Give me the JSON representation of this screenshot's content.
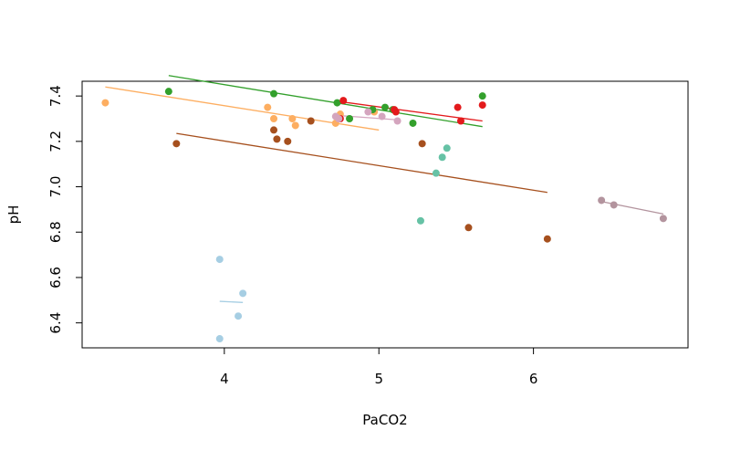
{
  "chart_data": {
    "type": "scatter",
    "title": "",
    "xlabel": "PaCO2",
    "ylabel": "pH",
    "xlim": [
      3.08,
      7.0
    ],
    "ylim": [
      6.29,
      7.465
    ],
    "x_ticks": [
      4,
      5,
      6
    ],
    "y_ticks": [
      6.4,
      6.6,
      6.8,
      7.0,
      7.2,
      7.4
    ],
    "x_tick_labels": [
      "4",
      "5",
      "6"
    ],
    "y_tick_labels": [
      "6.4",
      "6.6",
      "6.8",
      "7.0",
      "7.2",
      "7.4"
    ],
    "grid": false,
    "legend": "none",
    "series": [
      {
        "name": "light blue",
        "color": "#a6cee3",
        "points": [
          [
            3.97,
            6.68
          ],
          [
            4.12,
            6.53
          ],
          [
            4.09,
            6.43
          ],
          [
            3.97,
            6.33
          ]
        ],
        "fit": [
          [
            3.97,
            6.495
          ],
          [
            4.12,
            6.49
          ]
        ]
      },
      {
        "name": "orange",
        "color": "#fdae61",
        "points": [
          [
            3.23,
            7.37
          ],
          [
            4.28,
            7.35
          ],
          [
            4.32,
            7.3
          ],
          [
            4.44,
            7.3
          ],
          [
            4.46,
            7.27
          ],
          [
            4.72,
            7.28
          ],
          [
            4.75,
            7.32
          ],
          [
            4.97,
            7.33
          ]
        ],
        "fit": [
          [
            3.23,
            7.44
          ],
          [
            5.0,
            7.25
          ]
        ]
      },
      {
        "name": "dark green",
        "color": "#33a02c",
        "points": [
          [
            3.64,
            7.42
          ],
          [
            4.32,
            7.41
          ],
          [
            4.73,
            7.37
          ],
          [
            4.81,
            7.3
          ],
          [
            4.96,
            7.34
          ],
          [
            5.04,
            7.35
          ],
          [
            5.09,
            7.34
          ],
          [
            5.22,
            7.28
          ],
          [
            5.67,
            7.4
          ]
        ],
        "fit": [
          [
            3.64,
            7.49
          ],
          [
            5.67,
            7.265
          ]
        ]
      },
      {
        "name": "brown",
        "color": "#a6501e",
        "points": [
          [
            3.69,
            7.19
          ],
          [
            4.32,
            7.25
          ],
          [
            4.34,
            7.21
          ],
          [
            4.41,
            7.2
          ],
          [
            4.56,
            7.29
          ],
          [
            5.28,
            7.19
          ],
          [
            5.58,
            6.82
          ],
          [
            6.09,
            6.77
          ]
        ],
        "fit": [
          [
            3.69,
            7.235
          ],
          [
            6.09,
            6.975
          ]
        ]
      },
      {
        "name": "red",
        "color": "#e31a1c",
        "points": [
          [
            4.75,
            7.3
          ],
          [
            4.77,
            7.38
          ],
          [
            5.1,
            7.34
          ],
          [
            5.11,
            7.33
          ],
          [
            5.51,
            7.35
          ],
          [
            5.53,
            7.29
          ],
          [
            5.67,
            7.36
          ]
        ],
        "fit": [
          [
            4.75,
            7.375
          ],
          [
            5.67,
            7.29
          ]
        ]
      },
      {
        "name": "pink",
        "color": "#d4a5be",
        "points": [
          [
            4.72,
            7.31
          ],
          [
            4.74,
            7.3
          ],
          [
            4.93,
            7.33
          ],
          [
            5.02,
            7.31
          ],
          [
            5.12,
            7.29
          ]
        ],
        "fit": [
          [
            4.72,
            7.315
          ],
          [
            5.12,
            7.295
          ]
        ]
      },
      {
        "name": "teal",
        "color": "#66c2a5",
        "points": [
          [
            5.27,
            6.85
          ],
          [
            5.37,
            7.06
          ],
          [
            5.41,
            7.13
          ],
          [
            5.44,
            7.17
          ]
        ],
        "fit": []
      },
      {
        "name": "mauve",
        "color": "#b3949e",
        "points": [
          [
            6.44,
            6.94
          ],
          [
            6.52,
            6.92
          ],
          [
            6.84,
            6.86
          ]
        ],
        "fit": [
          [
            6.44,
            6.935
          ],
          [
            6.84,
            6.88
          ]
        ]
      }
    ]
  }
}
